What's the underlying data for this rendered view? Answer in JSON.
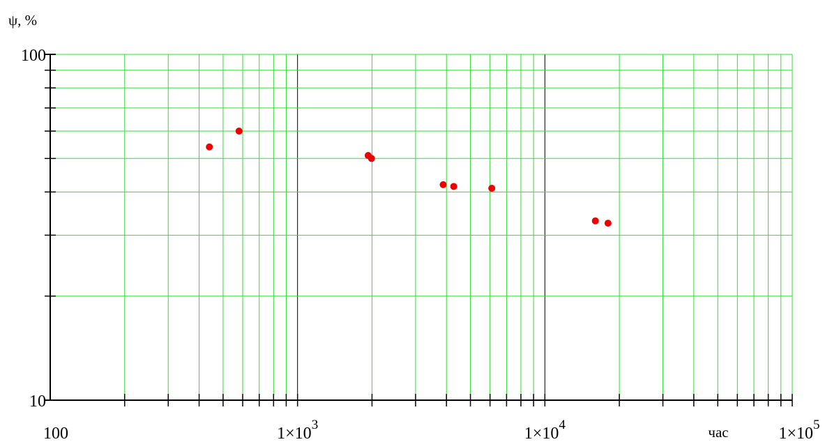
{
  "chart_data": {
    "type": "scatter",
    "ylabel": "ψ, %",
    "xlabel": "час",
    "x_scale": "log",
    "y_scale": "log",
    "xlim": [
      100,
      100000
    ],
    "ylim": [
      10,
      100
    ],
    "grid": true,
    "colors": {
      "minor_grid": "#33dd33",
      "major_grid": "#000000",
      "points": "#ee0000"
    },
    "x_tick_labels": [
      {
        "value": 100,
        "base": "100",
        "exp": ""
      },
      {
        "value": 1000,
        "base": "1×10",
        "exp": "3"
      },
      {
        "value": 10000,
        "base": "1×10",
        "exp": "4"
      },
      {
        "value": 100000,
        "base": "1×10",
        "exp": "5"
      }
    ],
    "y_tick_labels": [
      {
        "value": 100,
        "text": "100"
      },
      {
        "value": 10,
        "text": "10"
      }
    ],
    "series": [
      {
        "points": [
          {
            "x": 440,
            "y": 54
          },
          {
            "x": 580,
            "y": 60
          },
          {
            "x": 1930,
            "y": 51
          },
          {
            "x": 1990,
            "y": 50
          },
          {
            "x": 3880,
            "y": 42
          },
          {
            "x": 4280,
            "y": 41.5
          },
          {
            "x": 6100,
            "y": 41
          },
          {
            "x": 16000,
            "y": 33
          },
          {
            "x": 18000,
            "y": 32.5
          }
        ]
      }
    ]
  }
}
